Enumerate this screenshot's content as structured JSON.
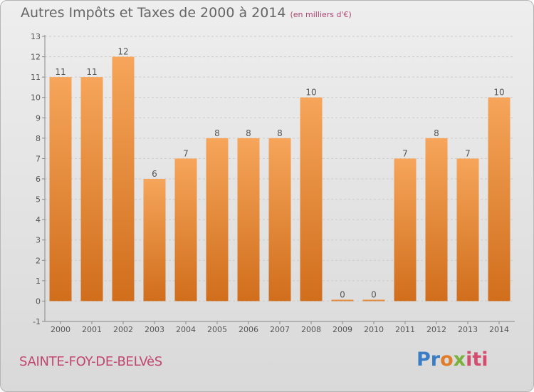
{
  "header": {
    "title": "Autres Impôts et Taxes de 2000 à 2014",
    "subtitle": "(en milliers d'€)"
  },
  "footer": {
    "location": "SAINTE-FOY-DE-BELVèS",
    "brand": "Proxiti"
  },
  "colors": {
    "bar_light": "#f6a55a",
    "bar_dark": "#d06e1c",
    "axis": "#888888",
    "grid": "#cccccc",
    "text": "#555555"
  },
  "chart_data": {
    "type": "bar",
    "categories": [
      "2000",
      "2001",
      "2002",
      "2003",
      "2004",
      "2005",
      "2006",
      "2007",
      "2008",
      "2009",
      "2010",
      "2011",
      "2012",
      "2013",
      "2014"
    ],
    "values": [
      11,
      11,
      12,
      6,
      7,
      8,
      8,
      8,
      10,
      0,
      0,
      7,
      8,
      7,
      10
    ],
    "data_labels": [
      "11",
      "11",
      "12",
      "6",
      "7",
      "8",
      "8",
      "8",
      "10",
      "0",
      "0",
      "7",
      "8",
      "7",
      "10"
    ],
    "title": "Autres Impôts et Taxes de 2000 à 2014",
    "subtitle": "(en milliers d'€)",
    "ylim": [
      -1,
      13
    ],
    "yticks": [
      -1,
      0,
      1,
      2,
      3,
      4,
      5,
      6,
      7,
      8,
      9,
      10,
      11,
      12,
      13
    ],
    "ytick_labels": [
      "-1",
      "0",
      "1",
      "2",
      "3",
      "4",
      "5",
      "6",
      "7",
      "8",
      "9",
      "10",
      "11",
      "12",
      "13"
    ],
    "grid": "horizontal dashed",
    "legend": "none"
  }
}
